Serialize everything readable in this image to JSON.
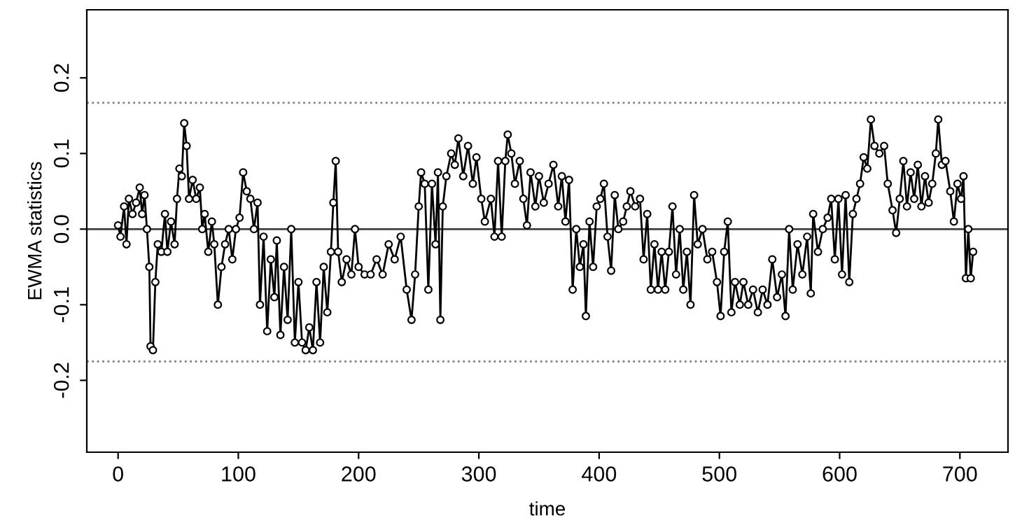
{
  "chart_data": {
    "type": "line",
    "xlabel": "time",
    "ylabel": "EWMA statistics",
    "xlim": [
      -26,
      740
    ],
    "ylim": [
      -0.295,
      0.29
    ],
    "xticks": [
      0,
      100,
      200,
      300,
      400,
      500,
      600,
      700
    ],
    "yticks": [
      {
        "value": -0.2,
        "label": "-0.2"
      },
      {
        "value": -0.1,
        "label": "-0.1"
      },
      {
        "value": 0.0,
        "label": "0.0"
      },
      {
        "value": 0.1,
        "label": "0.1"
      },
      {
        "value": 0.2,
        "label": "0.2"
      }
    ],
    "grid": false,
    "marker": "circle",
    "line_style": "solid",
    "ref_lines": [
      {
        "axis": "y",
        "value": 0.167,
        "color": "#808080",
        "line_style": "dotted"
      },
      {
        "axis": "y",
        "value": -0.175,
        "color": "#808080",
        "line_style": "dotted"
      },
      {
        "axis": "y",
        "value": 0.0,
        "color": "#404040",
        "line_style": "solid"
      }
    ],
    "series": [
      {
        "color": "#000000",
        "x": [
          0,
          2,
          5,
          7,
          9,
          12,
          15,
          18,
          20,
          22,
          24,
          26,
          27,
          29,
          31,
          33,
          36,
          39,
          41,
          44,
          47,
          49,
          51,
          53,
          55,
          57,
          59,
          62,
          65,
          68,
          70,
          72,
          75,
          78,
          80,
          83,
          86,
          89,
          92,
          95,
          98,
          101,
          104,
          107,
          110,
          113,
          116,
          118,
          121,
          124,
          127,
          130,
          132,
          135,
          138,
          141,
          144,
          147,
          150,
          153,
          156,
          159,
          162,
          165,
          168,
          171,
          174,
          177,
          179,
          181,
          183,
          186,
          190,
          194,
          197,
          200,
          205,
          210,
          215,
          220,
          225,
          230,
          235,
          240,
          244,
          247,
          250,
          252,
          255,
          258,
          261,
          264,
          266,
          268,
          270,
          273,
          277,
          280,
          283,
          287,
          291,
          295,
          298,
          302,
          305,
          310,
          313,
          316,
          319,
          322,
          324,
          327,
          330,
          334,
          337,
          340,
          343,
          347,
          350,
          354,
          358,
          362,
          366,
          369,
          372,
          375,
          378,
          381,
          384,
          387,
          389,
          392,
          395,
          398,
          401,
          404,
          407,
          410,
          413,
          416,
          420,
          423,
          426,
          430,
          434,
          437,
          440,
          443,
          446,
          449,
          452,
          455,
          458,
          461,
          464,
          467,
          470,
          473,
          476,
          479,
          482,
          486,
          490,
          494,
          498,
          501,
          504,
          507,
          510,
          513,
          517,
          520,
          524,
          528,
          532,
          536,
          540,
          544,
          548,
          552,
          555,
          558,
          561,
          565,
          569,
          573,
          576,
          578,
          582,
          586,
          590,
          593,
          596,
          599,
          602,
          605,
          608,
          611,
          614,
          617,
          620,
          623,
          626,
          629,
          633,
          637,
          640,
          644,
          647,
          650,
          653,
          656,
          659,
          662,
          665,
          668,
          671,
          674,
          677,
          680,
          682,
          685,
          688,
          692,
          695,
          698,
          701,
          703,
          705,
          707,
          709,
          711
        ],
        "values": [
          0.005,
          -0.01,
          0.03,
          -0.02,
          0.04,
          0.02,
          0.035,
          0.055,
          0.02,
          0.045,
          0.0,
          -0.05,
          -0.155,
          -0.16,
          -0.07,
          -0.02,
          -0.03,
          0.02,
          -0.03,
          0.01,
          -0.02,
          0.04,
          0.08,
          0.07,
          0.14,
          0.11,
          0.04,
          0.065,
          0.04,
          0.055,
          0.0,
          0.02,
          -0.03,
          0.01,
          -0.02,
          -0.1,
          -0.05,
          -0.02,
          0.0,
          -0.04,
          0.0,
          0.015,
          0.075,
          0.05,
          0.04,
          0.0,
          0.035,
          -0.1,
          -0.01,
          -0.135,
          -0.04,
          -0.09,
          -0.015,
          -0.14,
          -0.05,
          -0.12,
          0.0,
          -0.15,
          -0.07,
          -0.15,
          -0.16,
          -0.13,
          -0.16,
          -0.07,
          -0.15,
          -0.05,
          -0.11,
          -0.03,
          0.035,
          0.09,
          -0.03,
          -0.07,
          -0.04,
          -0.06,
          0.0,
          -0.05,
          -0.06,
          -0.06,
          -0.04,
          -0.06,
          -0.02,
          -0.04,
          -0.01,
          -0.08,
          -0.12,
          -0.06,
          0.03,
          0.075,
          0.06,
          -0.08,
          0.06,
          -0.02,
          0.075,
          -0.12,
          0.03,
          0.07,
          0.1,
          0.085,
          0.12,
          0.07,
          0.11,
          0.06,
          0.095,
          0.04,
          0.01,
          0.04,
          -0.01,
          0.09,
          -0.01,
          0.09,
          0.125,
          0.1,
          0.06,
          0.09,
          0.04,
          0.005,
          0.075,
          0.03,
          0.07,
          0.035,
          0.06,
          0.085,
          0.03,
          0.07,
          0.01,
          0.065,
          -0.08,
          0.0,
          -0.05,
          -0.02,
          -0.115,
          0.01,
          -0.05,
          0.03,
          0.04,
          0.06,
          -0.01,
          -0.055,
          0.045,
          0.0,
          0.01,
          0.03,
          0.05,
          0.03,
          0.04,
          -0.04,
          0.02,
          -0.08,
          -0.02,
          -0.08,
          -0.03,
          -0.08,
          -0.03,
          0.03,
          -0.06,
          0.0,
          -0.08,
          -0.03,
          -0.1,
          0.045,
          -0.02,
          0.0,
          -0.04,
          -0.03,
          -0.07,
          -0.115,
          -0.03,
          0.01,
          -0.11,
          -0.07,
          -0.1,
          -0.07,
          -0.1,
          -0.08,
          -0.11,
          -0.08,
          -0.1,
          -0.04,
          -0.09,
          -0.06,
          -0.115,
          0.0,
          -0.08,
          -0.02,
          -0.06,
          -0.01,
          -0.085,
          0.02,
          -0.03,
          0.0,
          0.015,
          0.04,
          -0.04,
          0.04,
          -0.06,
          0.045,
          -0.07,
          0.02,
          0.04,
          0.06,
          0.095,
          0.08,
          0.145,
          0.11,
          0.1,
          0.11,
          0.06,
          0.025,
          -0.005,
          0.04,
          0.09,
          0.03,
          0.075,
          0.04,
          0.085,
          0.03,
          0.07,
          0.035,
          0.06,
          0.1,
          0.145,
          0.085,
          0.09,
          0.05,
          0.01,
          0.06,
          0.04,
          0.07,
          -0.065,
          0.0,
          -0.065,
          -0.03
        ]
      }
    ]
  }
}
